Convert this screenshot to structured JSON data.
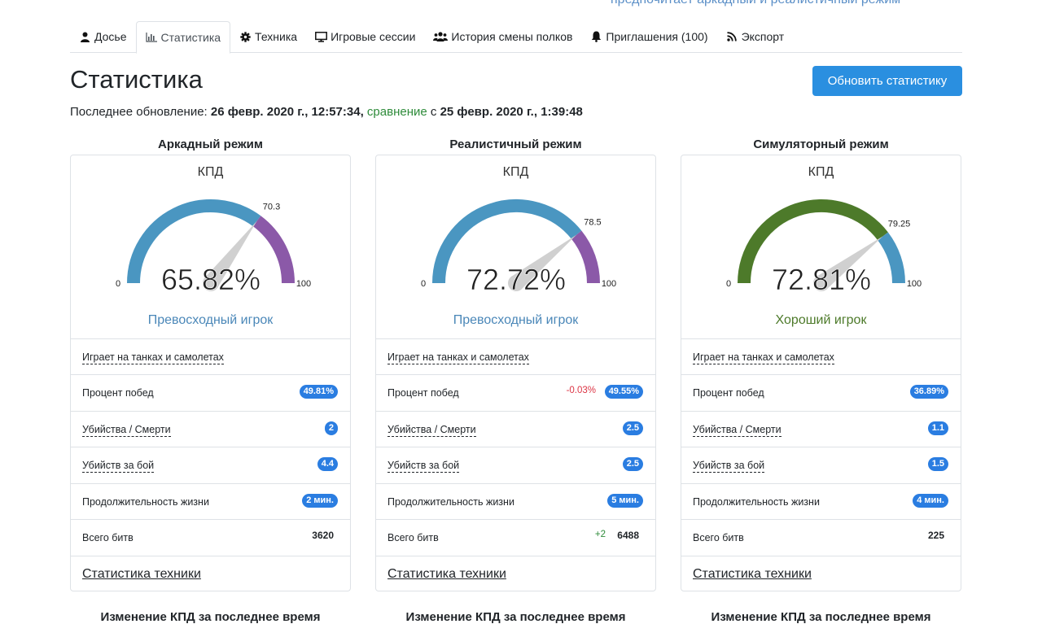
{
  "top_partial_text": "предпочитает аркадный и реалистичный режим",
  "tabs": [
    {
      "label": "Досье",
      "icon": "user-icon",
      "active": false
    },
    {
      "label": "Статистика",
      "icon": "chart-icon",
      "active": true
    },
    {
      "label": "Техника",
      "icon": "gear-icon",
      "active": false
    },
    {
      "label": "Игровые сессии",
      "icon": "monitor-icon",
      "active": false
    },
    {
      "label": "История смены полков",
      "icon": "users-icon",
      "active": false
    },
    {
      "label": "Приглашения (100)",
      "icon": "bell-icon",
      "active": false
    },
    {
      "label": "Экспорт",
      "icon": "rss-icon",
      "active": false
    }
  ],
  "page_title": "Статистика",
  "refresh_button": "Обновить статистику",
  "updated": {
    "prefix": "Последнее обновление:",
    "date": "26 февр. 2020 г., 12:57:34,",
    "compare_word": "сравнение",
    "with": "с",
    "compare_date": "25 февр. 2020 г., 1:39:48"
  },
  "colors": {
    "accent": "#2a8fe0",
    "badge": "#2a7de1",
    "gauge_blue": "#4a96c1",
    "gauge_purple": "#8b59a8",
    "gauge_green": "#4d7a2a",
    "rating_blue": "#4a87b8",
    "rating_green": "#4d7a2a"
  },
  "modes": [
    {
      "title": "Аркадный режим",
      "kpd_label": "КПД",
      "value_text": "65.82%",
      "value": 65.82,
      "threshold": 70.3,
      "threshold_text": "70.3",
      "min": "0",
      "max": "100",
      "scheme": "blue-purple",
      "rating": "Превосходный игрок",
      "rating_color": "#4a87b8",
      "rows": [
        {
          "label": "Играет на танках и самолетах",
          "dashed": true
        },
        {
          "label": "Процент побед",
          "badge": "49.81%"
        },
        {
          "label": "Убийства / Смерти",
          "dashed": true,
          "badge": "2"
        },
        {
          "label": "Убийств за бой",
          "dashed": true,
          "badge": "4.4"
        },
        {
          "label": "Продолжительность жизни",
          "badge": "2 мин."
        },
        {
          "label": "Всего битв",
          "plain": "3620"
        }
      ],
      "vehicle_stats": "Статистика техники",
      "bottom_title": "Изменение КПД за последнее время"
    },
    {
      "title": "Реалистичный режим",
      "kpd_label": "КПД",
      "value_text": "72.72%",
      "value": 72.72,
      "threshold": 78.5,
      "threshold_text": "78.5",
      "min": "0",
      "max": "100",
      "scheme": "blue-purple",
      "rating": "Превосходный игрок",
      "rating_color": "#4a87b8",
      "rows": [
        {
          "label": "Играет на танках и самолетах",
          "dashed": true
        },
        {
          "label": "Процент побед",
          "badge": "49.55%",
          "delta": "-0.03%"
        },
        {
          "label": "Убийства / Смерти",
          "dashed": true,
          "badge": "2.5"
        },
        {
          "label": "Убийств за бой",
          "dashed": true,
          "badge": "2.5"
        },
        {
          "label": "Продолжительность жизни",
          "badge": "5 мин."
        },
        {
          "label": "Всего битв",
          "plain": "6488",
          "delta_pos": "+2"
        }
      ],
      "vehicle_stats": "Статистика техники",
      "bottom_title": "Изменение КПД за последнее время"
    },
    {
      "title": "Симуляторный режим",
      "kpd_label": "КПД",
      "value_text": "72.81%",
      "value": 72.81,
      "threshold": 79.25,
      "threshold_text": "79.25",
      "min": "0",
      "max": "100",
      "scheme": "green-blue",
      "rating": "Хороший игрок",
      "rating_color": "#4d7a2a",
      "rows": [
        {
          "label": "Играет на танках и самолетах",
          "dashed": true
        },
        {
          "label": "Процент побед",
          "badge": "36.89%"
        },
        {
          "label": "Убийства / Смерти",
          "dashed": true,
          "badge": "1.1"
        },
        {
          "label": "Убийств за бой",
          "dashed": true,
          "badge": "1.5"
        },
        {
          "label": "Продолжительность жизни",
          "badge": "4 мин."
        },
        {
          "label": "Всего битв",
          "plain": "225"
        }
      ],
      "vehicle_stats": "Статистика техники",
      "bottom_title": "Изменение КПД за последнее время"
    }
  ]
}
